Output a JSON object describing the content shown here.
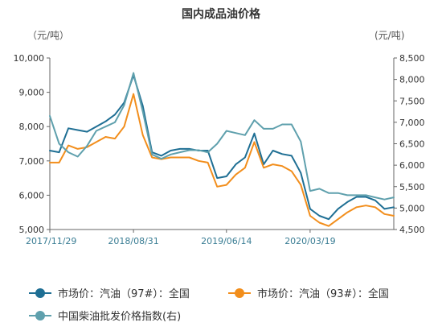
{
  "chart_data": {
    "type": "line",
    "title": "国内成品油价格",
    "ylabel_left": "（元/吨）",
    "ylabel_right": "(元/吨)",
    "ylim_left": [
      5000,
      10000
    ],
    "ylim_right": [
      4500,
      8500
    ],
    "yticks_left": [
      "5,000",
      "6,000",
      "7,000",
      "8,000",
      "9,000",
      "10,000"
    ],
    "yticks_right": [
      "4,500",
      "5,000",
      "5,500",
      "6,000",
      "6,500",
      "7,000",
      "7,500",
      "8,000",
      "8,500"
    ],
    "x_categories": [
      "2017/11/29",
      "2018/08/31",
      "2019/06/14",
      "2020/03/19"
    ],
    "grid": false,
    "legend_position": "bottom",
    "x": [
      "2017/11/29",
      "2017/12/29",
      "2018/01/29",
      "2018/02/28",
      "2018/03/29",
      "2018/04/29",
      "2018/05/29",
      "2018/06/29",
      "2018/07/29",
      "2018/08/31",
      "2018/09/29",
      "2018/10/29",
      "2018/11/29",
      "2018/12/29",
      "2019/01/29",
      "2019/02/28",
      "2019/03/29",
      "2019/04/29",
      "2019/05/29",
      "2019/06/14",
      "2019/07/29",
      "2019/08/29",
      "2019/09/29",
      "2019/10/29",
      "2019/11/29",
      "2019/12/29",
      "2020/01/29",
      "2020/02/28",
      "2020/03/19",
      "2020/04/29",
      "2020/05/29",
      "2020/06/29",
      "2020/07/29",
      "2020/08/29",
      "2020/09/29",
      "2020/10/29",
      "2020/11/29",
      "2020/12/29"
    ],
    "series": [
      {
        "name": "市场价：汽油（97#）：全国",
        "axis": "left",
        "color": "#1f6f94",
        "values": [
          7300,
          7250,
          7950,
          7900,
          7850,
          8000,
          8150,
          8350,
          8700,
          9500,
          8600,
          7250,
          7150,
          7300,
          7350,
          7350,
          7300,
          7300,
          6500,
          6550,
          6900,
          7100,
          7800,
          6900,
          7300,
          7200,
          7150,
          6650,
          5600,
          5400,
          5300,
          5600,
          5800,
          5950,
          5950,
          5850,
          5600,
          5650
        ]
      },
      {
        "name": "市场价：汽油（93#）：全国",
        "axis": "left",
        "color": "#f28e1c",
        "values": [
          6950,
          6950,
          7450,
          7350,
          7400,
          7550,
          7700,
          7650,
          8000,
          8950,
          7750,
          7100,
          7050,
          7100,
          7100,
          7100,
          7000,
          6950,
          6250,
          6300,
          6600,
          6800,
          7550,
          6800,
          6900,
          6850,
          6700,
          6300,
          5400,
          5200,
          5100,
          5300,
          5500,
          5650,
          5700,
          5650,
          5450,
          5400
        ]
      },
      {
        "name": "中国柴油批发价格指数(右)",
        "axis": "right",
        "color": "#5fa0ad",
        "values": [
          7150,
          6500,
          6300,
          6200,
          6450,
          6800,
          6900,
          7000,
          7400,
          8150,
          7250,
          6250,
          6150,
          6250,
          6300,
          6350,
          6350,
          6300,
          6500,
          6800,
          6750,
          6700,
          7050,
          6850,
          6850,
          6950,
          6950,
          6550,
          5400,
          5450,
          5350,
          5350,
          5300,
          5300,
          5300,
          5250,
          5200,
          5250
        ]
      }
    ]
  }
}
